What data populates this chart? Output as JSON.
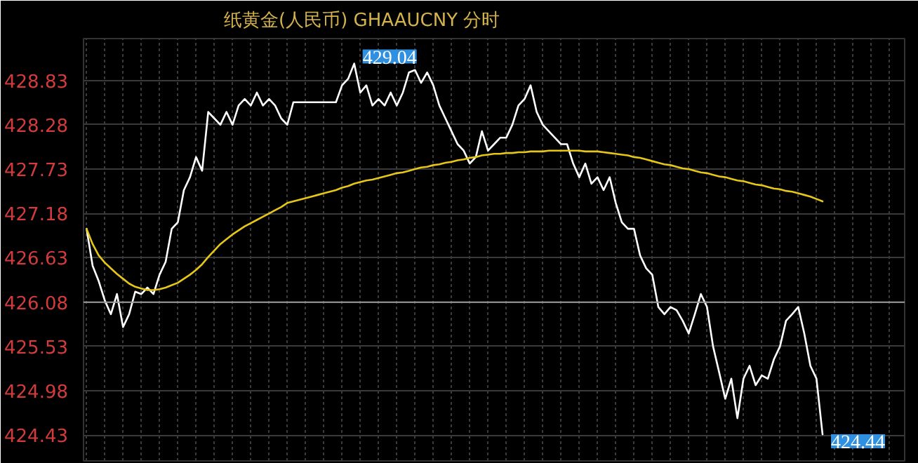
{
  "chart_data": {
    "type": "line",
    "title": "纸黄金(人民币) GHAAUCNY 分时",
    "categories": [
      null,
      null,
      null,
      null,
      null,
      null,
      null,
      null,
      null,
      null,
      null,
      null,
      null,
      null,
      null,
      null,
      null,
      null,
      null,
      null,
      null,
      null,
      null,
      null,
      null,
      null,
      null,
      null,
      null,
      null,
      null,
      null,
      null,
      null,
      null,
      null,
      null,
      null,
      null,
      null,
      null,
      null,
      null,
      null,
      null,
      null,
      null,
      null,
      null,
      null,
      null,
      null,
      null,
      null,
      null,
      null,
      null,
      null,
      null,
      null,
      null,
      null,
      null,
      null,
      null,
      null,
      null,
      null,
      null,
      null,
      null,
      null,
      null,
      null,
      null,
      null,
      null,
      null,
      null,
      null,
      null,
      null,
      null,
      null,
      null,
      null,
      null,
      null,
      null,
      null,
      null,
      null,
      null,
      null,
      null,
      null,
      null,
      null,
      null,
      null,
      null,
      null,
      null,
      null,
      null,
      null,
      null,
      null,
      null,
      null,
      null,
      null,
      null,
      null,
      null,
      null,
      null,
      null,
      null,
      null,
      null,
      null,
      null,
      null,
      null,
      null,
      null,
      null,
      null,
      null,
      null,
      null,
      null,
      null,
      null
    ],
    "series": [
      {
        "color": "#ffffff",
        "values": [
          426.99,
          426.53,
          426.34,
          426.1,
          425.93,
          426.18,
          425.77,
          425.93,
          426.21,
          426.18,
          426.26,
          426.18,
          426.42,
          426.58,
          426.99,
          427.07,
          427.47,
          427.63,
          427.88,
          427.71,
          428.44,
          428.36,
          428.28,
          428.44,
          428.28,
          428.52,
          428.6,
          428.52,
          428.68,
          428.52,
          428.6,
          428.52,
          428.36,
          428.28,
          428.56,
          428.56,
          428.56,
          428.56,
          428.56,
          428.56,
          428.56,
          428.56,
          428.77,
          428.85,
          429.04,
          428.68,
          428.77,
          428.52,
          428.6,
          428.52,
          428.68,
          428.52,
          428.68,
          428.93,
          428.96,
          428.8,
          428.93,
          428.77,
          428.52,
          428.36,
          428.2,
          428.04,
          427.96,
          427.8,
          427.88,
          428.2,
          427.96,
          428.04,
          428.12,
          428.12,
          428.28,
          428.52,
          428.6,
          428.77,
          428.44,
          428.28,
          428.2,
          428.12,
          428.04,
          428.04,
          427.8,
          427.63,
          427.8,
          427.55,
          427.63,
          427.47,
          427.63,
          427.31,
          427.07,
          426.99,
          426.99,
          426.66,
          426.5,
          426.42,
          426.02,
          425.93,
          426.02,
          425.98,
          425.85,
          425.69,
          425.93,
          426.18,
          426.02,
          425.53,
          425.21,
          424.88,
          425.13,
          424.64,
          425.13,
          425.29,
          425.05,
          425.17,
          425.13,
          425.37,
          425.53,
          425.85,
          425.93,
          426.02,
          425.69,
          425.29,
          425.13,
          424.44,
          null,
          null,
          null,
          null,
          null,
          null,
          null,
          null,
          null,
          null,
          null,
          null,
          null
        ],
        "value_labels": [
          null,
          null,
          null,
          null,
          null,
          null,
          null,
          null,
          null,
          null,
          null,
          null,
          null,
          null,
          null,
          null,
          null,
          null,
          null,
          null,
          null,
          null,
          null,
          null,
          null,
          null,
          null,
          null,
          null,
          null,
          null,
          null,
          null,
          null,
          null,
          null,
          null,
          null,
          null,
          null,
          null,
          null,
          null,
          null,
          "429.04",
          null,
          null,
          null,
          null,
          null,
          null,
          null,
          null,
          null,
          null,
          null,
          null,
          null,
          null,
          null,
          null,
          null,
          null,
          null,
          null,
          null,
          null,
          null,
          null,
          null,
          null,
          null,
          null,
          null,
          null,
          null,
          null,
          null,
          null,
          null,
          null,
          null,
          null,
          null,
          null,
          null,
          null,
          null,
          null,
          null,
          null,
          null,
          null,
          null,
          null,
          null,
          null,
          null,
          null,
          null,
          null,
          null,
          null,
          null,
          null,
          null,
          null,
          null,
          null,
          null,
          null,
          null,
          null,
          null,
          null,
          null,
          null,
          null,
          null,
          null,
          null,
          "424.44",
          null,
          null,
          null,
          null,
          null,
          null,
          null,
          null,
          null,
          null,
          null,
          null,
          null
        ]
      },
      {
        "color": "#e6c619",
        "values": [
          426.99,
          426.8,
          426.66,
          426.57,
          426.5,
          426.43,
          426.37,
          426.31,
          426.27,
          426.25,
          426.23,
          426.23,
          426.24,
          426.26,
          426.29,
          426.32,
          426.37,
          426.42,
          426.48,
          426.55,
          426.64,
          426.72,
          426.8,
          426.86,
          426.92,
          426.97,
          427.02,
          427.06,
          427.1,
          427.14,
          427.18,
          427.22,
          427.26,
          427.31,
          427.33,
          427.35,
          427.37,
          427.39,
          427.41,
          427.43,
          427.45,
          427.47,
          427.5,
          427.52,
          427.55,
          427.57,
          427.59,
          427.6,
          427.62,
          427.64,
          427.66,
          427.68,
          427.69,
          427.71,
          427.73,
          427.75,
          427.76,
          427.78,
          427.79,
          427.81,
          427.82,
          427.84,
          427.85,
          427.87,
          427.88,
          427.9,
          427.91,
          427.92,
          427.92,
          427.93,
          427.93,
          427.94,
          427.94,
          427.95,
          427.95,
          427.95,
          427.96,
          427.96,
          427.96,
          427.96,
          427.96,
          427.96,
          427.95,
          427.95,
          427.95,
          427.94,
          427.93,
          427.92,
          427.91,
          427.9,
          427.88,
          427.87,
          427.85,
          427.83,
          427.81,
          427.79,
          427.78,
          427.76,
          427.74,
          427.73,
          427.71,
          427.69,
          427.68,
          427.66,
          427.64,
          427.63,
          427.61,
          427.59,
          427.58,
          427.56,
          427.54,
          427.53,
          427.51,
          427.49,
          427.48,
          427.46,
          427.45,
          427.43,
          427.41,
          427.39,
          427.36,
          427.33,
          null,
          null,
          null,
          null,
          null,
          null,
          null,
          null,
          null,
          null,
          null,
          null,
          null
        ]
      }
    ],
    "ylim": [
      424.11,
      429.35
    ],
    "yticks": [
      424.43,
      424.98,
      425.53,
      426.08,
      426.63,
      427.18,
      427.73,
      428.28,
      428.83
    ],
    "ref_lines": [
      {
        "axis": "y",
        "value": 426.08,
        "color": "#9a9a9a"
      }
    ],
    "grid": true,
    "tick_labels": "y",
    "marker": "none",
    "line_style": "solid"
  }
}
